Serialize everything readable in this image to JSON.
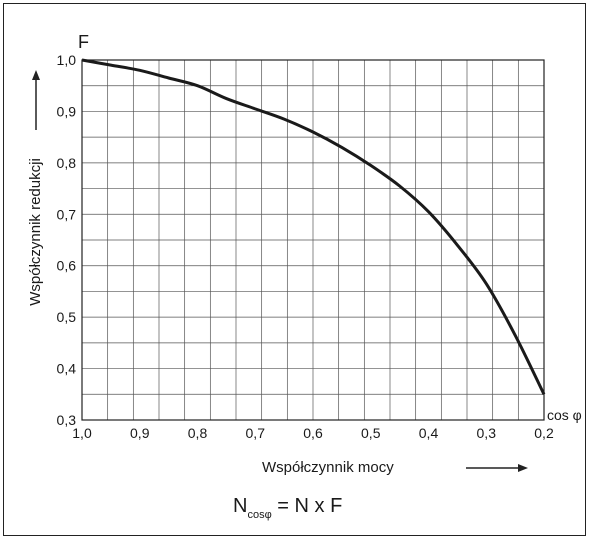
{
  "chart_data": {
    "type": "line",
    "series": [
      {
        "x": [
          1.0,
          0.95,
          0.9,
          0.85,
          0.8,
          0.75,
          0.7,
          0.65,
          0.6,
          0.55,
          0.5,
          0.45,
          0.4,
          0.35,
          0.3,
          0.25,
          0.2
        ],
        "y": [
          1.0,
          0.99,
          0.98,
          0.965,
          0.95,
          0.925,
          0.905,
          0.885,
          0.86,
          0.83,
          0.795,
          0.755,
          0.705,
          0.64,
          0.565,
          0.465,
          0.35
        ]
      }
    ],
    "xlim": [
      1.0,
      0.2
    ],
    "ylim": [
      0.3,
      1.0
    ],
    "x_ticks": [
      "1,0",
      "0,9",
      "0,8",
      "0,7",
      "0,6",
      "0,5",
      "0,4",
      "0,3",
      "0,2"
    ],
    "y_ticks": [
      "0,3",
      "0,4",
      "0,5",
      "0,6",
      "0,7",
      "0,8",
      "0,9",
      "1,0"
    ],
    "x_axis_symbol": "cos φ",
    "y_axis_symbol": "F",
    "xlabel": "Współczynnik mocy",
    "ylabel": "Współczynnik redukcji",
    "grid": true,
    "formula": {
      "main": "N",
      "subscript": "cosφ",
      "rest": " = N x F"
    },
    "line_color": "#1a1a1a"
  }
}
